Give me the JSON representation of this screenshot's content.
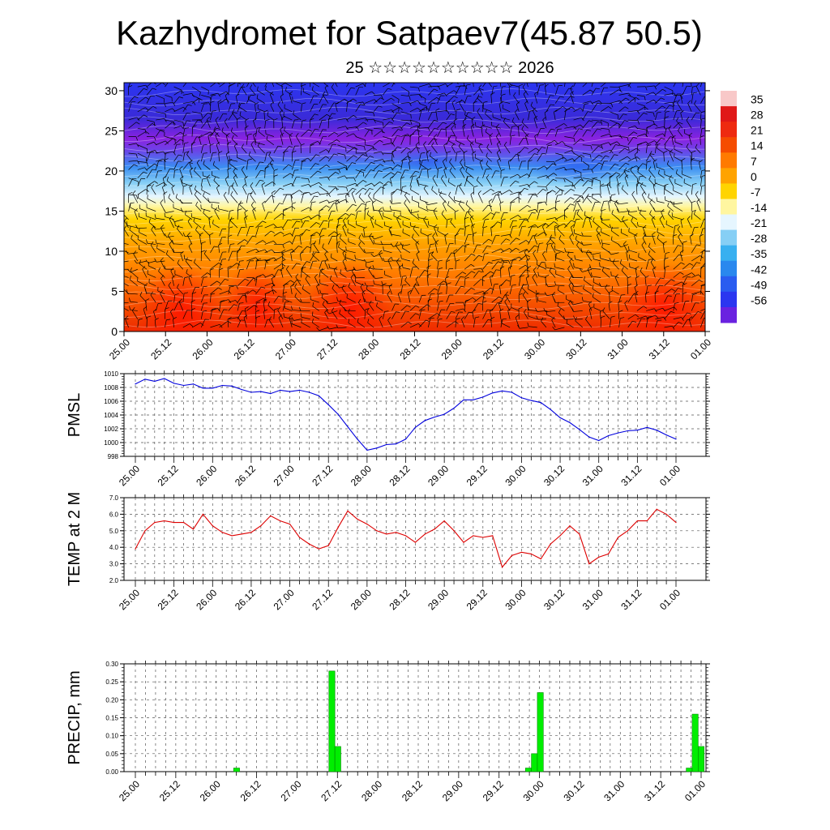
{
  "title": "Kazhydromet for Satpaev7(45.87 50.5)",
  "subtitle": "25 ☆☆☆☆☆☆☆☆☆☆ 2026",
  "colors": {
    "pmsl_line": "#0000dd",
    "temp_line": "#dd0000",
    "precip_bar": "#00ee00",
    "precip_bar_edge": "#008800",
    "grid": "#555555"
  },
  "chart_data": [
    {
      "type": "heatmap",
      "name": "cross-section",
      "x_tick_labels": [
        "25.00",
        "25.12",
        "26.00",
        "26.12",
        "27.00",
        "27.12",
        "28.00",
        "28.12",
        "29.00",
        "29.12",
        "30.00",
        "30.12",
        "31.00",
        "31.12",
        "01.00"
      ],
      "y_tick_labels": [
        "0",
        "5",
        "10",
        "15",
        "20",
        "25",
        "30"
      ],
      "ylim": [
        0,
        31
      ],
      "colorbar_labels": [
        "35",
        "28",
        "21",
        "14",
        "7",
        "0",
        "-7",
        "-14",
        "-21",
        "-28",
        "-35",
        "-42",
        "-49",
        "-56"
      ],
      "overlay": "wind barbs"
    },
    {
      "type": "line",
      "ylabel": "PMSL",
      "ylim": [
        998,
        1010
      ],
      "y_tick_labels": [
        "998",
        "1000",
        "1002",
        "1004",
        "1006",
        "1008",
        "1010"
      ],
      "x_tick_labels": [
        "25.00",
        "25.12",
        "26.00",
        "26.12",
        "27.00",
        "27.12",
        "28.00",
        "28.12",
        "29.00",
        "29.12",
        "30.00",
        "30.12",
        "31.00",
        "31.12",
        "01.00"
      ],
      "values": [
        1008.5,
        1009.2,
        1008.9,
        1009.3,
        1008.6,
        1008.3,
        1008.5,
        1007.9,
        1007.9,
        1008.3,
        1008.2,
        1007.7,
        1007.3,
        1007.4,
        1007.1,
        1007.6,
        1007.4,
        1007.6,
        1007.3,
        1006.8,
        1005.5,
        1004.1,
        1002.3,
        1000.5,
        998.9,
        999.2,
        999.7,
        999.8,
        1000.5,
        1002.2,
        1003.2,
        1003.7,
        1004.1,
        1005.0,
        1006.2,
        1006.2,
        1006.6,
        1007.2,
        1007.5,
        1007.3,
        1006.5,
        1006.1,
        1005.8,
        1004.8,
        1003.6,
        1002.9,
        1001.9,
        1000.8,
        1000.3,
        1001.0,
        1001.4,
        1001.7,
        1001.8,
        1002.2,
        1001.8,
        1001.1,
        1000.5
      ]
    },
    {
      "type": "line",
      "ylabel": "TEMP at 2 M",
      "ylim": [
        2.0,
        7.0
      ],
      "y_tick_labels": [
        "2.0",
        "3.0",
        "4.0",
        "5.0",
        "6.0",
        "7.0"
      ],
      "x_tick_labels": [
        "25.00",
        "25.12",
        "26.00",
        "26.12",
        "27.00",
        "27.12",
        "28.00",
        "28.12",
        "29.00",
        "29.12",
        "30.00",
        "30.12",
        "31.00",
        "31.12",
        "01.00"
      ],
      "values": [
        3.9,
        5.0,
        5.5,
        5.6,
        5.5,
        5.5,
        5.1,
        6.0,
        5.3,
        4.9,
        4.7,
        4.8,
        4.9,
        5.3,
        5.9,
        5.6,
        5.4,
        4.6,
        4.2,
        3.9,
        4.1,
        5.2,
        6.2,
        5.7,
        5.4,
        5.0,
        4.8,
        4.9,
        4.7,
        4.3,
        4.8,
        5.1,
        5.6,
        5.0,
        4.3,
        4.7,
        4.6,
        4.7,
        2.8,
        3.5,
        3.7,
        3.6,
        3.3,
        4.2,
        4.7,
        5.3,
        4.8,
        3.0,
        3.4,
        3.6,
        4.6,
        5.0,
        5.6,
        5.6,
        6.3,
        6.0,
        5.5
      ]
    },
    {
      "type": "bar",
      "ylabel": "PRECIP, mm",
      "ylim": [
        0,
        0.3
      ],
      "y_tick_labels": [
        "0.00",
        "0.05",
        "0.10",
        "0.15",
        "0.20",
        "0.25",
        "0.30"
      ],
      "x_tick_labels": [
        "25.00",
        "25.12",
        "26.00",
        "26.12",
        "27.00",
        "27.12",
        "28.00",
        "28.12",
        "29.00",
        "29.12",
        "30.00",
        "30.12",
        "31.00",
        "31.12",
        "01.00"
      ],
      "values": [
        0,
        0,
        0,
        0,
        0,
        0,
        0,
        0,
        0,
        0,
        0,
        0,
        0,
        0,
        0,
        0,
        0,
        0.01,
        0,
        0,
        0,
        0,
        0,
        0,
        0,
        0,
        0,
        0,
        0,
        0,
        0,
        0,
        0,
        0.28,
        0.07,
        0,
        0,
        0,
        0,
        0,
        0,
        0,
        0,
        0,
        0,
        0,
        0,
        0,
        0,
        0,
        0,
        0,
        0,
        0,
        0,
        0,
        0,
        0,
        0,
        0,
        0,
        0,
        0,
        0,
        0,
        0,
        0.01,
        0.05,
        0.22,
        0,
        0,
        0,
        0,
        0,
        0,
        0,
        0,
        0,
        0,
        0,
        0,
        0,
        0,
        0,
        0,
        0,
        0,
        0,
        0,
        0,
        0,
        0,
        0,
        0.01,
        0.16,
        0.07
      ]
    }
  ]
}
